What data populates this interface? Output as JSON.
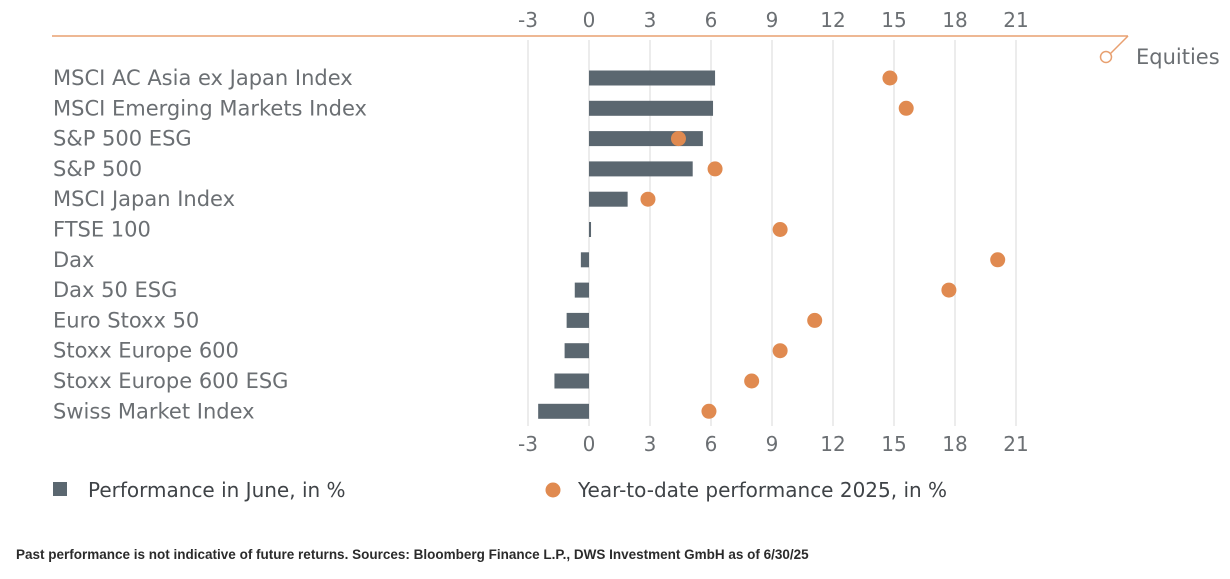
{
  "section_label": "Equities",
  "footnote": "Past performance is not indicative of future returns. Sources: Bloomberg Finance L.P., DWS Investment GmbH as of 6/30/25",
  "colors": {
    "bar": "#5b6770",
    "dot": "#e08a50",
    "accent_line": "#e8a070",
    "grid": "#d9d9d9",
    "text": "#6b6f73"
  },
  "chart_data": {
    "type": "bar",
    "orientation": "horizontal",
    "categories": [
      "MSCI AC Asia ex Japan Index",
      "MSCI Emerging Markets Index",
      "S&P 500 ESG",
      "S&P 500",
      "MSCI Japan Index",
      "FTSE 100",
      "Dax",
      "Dax 50 ESG",
      "Euro Stoxx 50",
      "Stoxx Europe 600",
      "Stoxx Europe 600 ESG",
      "Swiss Market Index"
    ],
    "series": [
      {
        "name": "Performance in June, in %",
        "kind": "bar",
        "values": [
          6.2,
          6.1,
          5.6,
          5.1,
          1.9,
          0.1,
          -0.4,
          -0.7,
          -1.1,
          -1.2,
          -1.7,
          -2.5
        ]
      },
      {
        "name": "Year-to-date performance 2025, in %",
        "kind": "dot",
        "values": [
          14.8,
          15.6,
          4.4,
          6.2,
          2.9,
          9.4,
          20.1,
          17.7,
          11.1,
          9.4,
          8.0,
          5.9
        ]
      }
    ],
    "xlim": [
      -3,
      21
    ],
    "xticks": [
      "-3",
      "0",
      "3",
      "6",
      "9",
      "12",
      "15",
      "18",
      "21"
    ],
    "grid": true,
    "legend_position": "bottom"
  }
}
